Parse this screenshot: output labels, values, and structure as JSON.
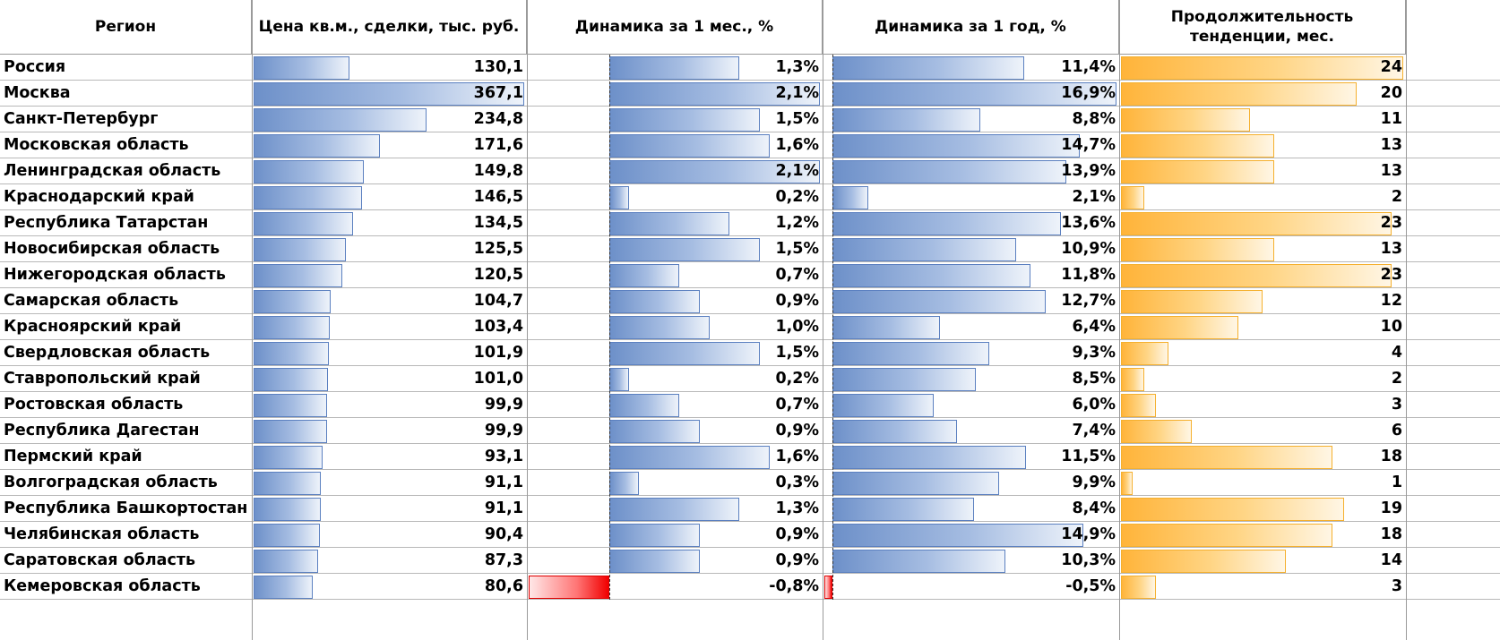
{
  "chart_data": {
    "type": "table",
    "headers": {
      "region": "Регион",
      "price": "Цена кв.м., сделки, тыс. руб.",
      "month": "Динамика за 1 мес., %",
      "year": "Динамика за 1 год, %",
      "duration": "Продолжительность тенденции, мес."
    },
    "colors": {
      "bar_blue": "#5b80c0",
      "bar_red": "#e00000",
      "bar_orange": "#f5b02e"
    },
    "rows": [
      {
        "region": "Россия",
        "price": 130.1,
        "price_label": "130,1",
        "month": 1.3,
        "month_label": "1,3%",
        "year": 11.4,
        "year_label": "11,4%",
        "duration": 24,
        "duration_label": "24"
      },
      {
        "region": "Москва",
        "price": 367.1,
        "price_label": "367,1",
        "month": 2.1,
        "month_label": "2,1%",
        "year": 16.9,
        "year_label": "16,9%",
        "duration": 20,
        "duration_label": "20"
      },
      {
        "region": "Санкт-Петербург",
        "price": 234.8,
        "price_label": "234,8",
        "month": 1.5,
        "month_label": "1,5%",
        "year": 8.8,
        "year_label": "8,8%",
        "duration": 11,
        "duration_label": "11"
      },
      {
        "region": "Московская область",
        "price": 171.6,
        "price_label": "171,6",
        "month": 1.6,
        "month_label": "1,6%",
        "year": 14.7,
        "year_label": "14,7%",
        "duration": 13,
        "duration_label": "13"
      },
      {
        "region": "Ленинградская область",
        "price": 149.8,
        "price_label": "149,8",
        "month": 2.1,
        "month_label": "2,1%",
        "year": 13.9,
        "year_label": "13,9%",
        "duration": 13,
        "duration_label": "13"
      },
      {
        "region": "Краснодарский край",
        "price": 146.5,
        "price_label": "146,5",
        "month": 0.2,
        "month_label": "0,2%",
        "year": 2.1,
        "year_label": "2,1%",
        "duration": 2,
        "duration_label": "2"
      },
      {
        "region": "Республика Татарстан",
        "price": 134.5,
        "price_label": "134,5",
        "month": 1.2,
        "month_label": "1,2%",
        "year": 13.6,
        "year_label": "13,6%",
        "duration": 23,
        "duration_label": "23"
      },
      {
        "region": "Новосибирская область",
        "price": 125.5,
        "price_label": "125,5",
        "month": 1.5,
        "month_label": "1,5%",
        "year": 10.9,
        "year_label": "10,9%",
        "duration": 13,
        "duration_label": "13"
      },
      {
        "region": "Нижегородская область",
        "price": 120.5,
        "price_label": "120,5",
        "month": 0.7,
        "month_label": "0,7%",
        "year": 11.8,
        "year_label": "11,8%",
        "duration": 23,
        "duration_label": "23"
      },
      {
        "region": "Самарская область",
        "price": 104.7,
        "price_label": "104,7",
        "month": 0.9,
        "month_label": "0,9%",
        "year": 12.7,
        "year_label": "12,7%",
        "duration": 12,
        "duration_label": "12"
      },
      {
        "region": "Красноярский край",
        "price": 103.4,
        "price_label": "103,4",
        "month": 1.0,
        "month_label": "1,0%",
        "year": 6.4,
        "year_label": "6,4%",
        "duration": 10,
        "duration_label": "10"
      },
      {
        "region": "Свердловская область",
        "price": 101.9,
        "price_label": "101,9",
        "month": 1.5,
        "month_label": "1,5%",
        "year": 9.3,
        "year_label": "9,3%",
        "duration": 4,
        "duration_label": "4"
      },
      {
        "region": "Ставропольский край",
        "price": 101.0,
        "price_label": "101,0",
        "month": 0.2,
        "month_label": "0,2%",
        "year": 8.5,
        "year_label": "8,5%",
        "duration": 2,
        "duration_label": "2"
      },
      {
        "region": "Ростовская область",
        "price": 99.9,
        "price_label": "99,9",
        "month": 0.7,
        "month_label": "0,7%",
        "year": 6.0,
        "year_label": "6,0%",
        "duration": 3,
        "duration_label": "3"
      },
      {
        "region": "Республика Дагестан",
        "price": 99.9,
        "price_label": "99,9",
        "month": 0.9,
        "month_label": "0,9%",
        "year": 7.4,
        "year_label": "7,4%",
        "duration": 6,
        "duration_label": "6"
      },
      {
        "region": "Пермский край",
        "price": 93.1,
        "price_label": "93,1",
        "month": 1.6,
        "month_label": "1,6%",
        "year": 11.5,
        "year_label": "11,5%",
        "duration": 18,
        "duration_label": "18"
      },
      {
        "region": "Волгоградская область",
        "price": 91.1,
        "price_label": "91,1",
        "month": 0.3,
        "month_label": "0,3%",
        "year": 9.9,
        "year_label": "9,9%",
        "duration": 1,
        "duration_label": "1"
      },
      {
        "region": "Республика Башкортостан",
        "price": 91.1,
        "price_label": "91,1",
        "month": 1.3,
        "month_label": "1,3%",
        "year": 8.4,
        "year_label": "8,4%",
        "duration": 19,
        "duration_label": "19"
      },
      {
        "region": "Челябинская область",
        "price": 90.4,
        "price_label": "90,4",
        "month": 0.9,
        "month_label": "0,9%",
        "year": 14.9,
        "year_label": "14,9%",
        "duration": 18,
        "duration_label": "18"
      },
      {
        "region": "Саратовская область",
        "price": 87.3,
        "price_label": "87,3",
        "month": 0.9,
        "month_label": "0,9%",
        "year": 10.3,
        "year_label": "10,3%",
        "duration": 14,
        "duration_label": "14"
      },
      {
        "region": "Кемеровская область",
        "price": 80.6,
        "price_label": "80,6",
        "month": -0.8,
        "month_label": "-0,8%",
        "year": -0.5,
        "year_label": "-0,5%",
        "duration": 3,
        "duration_label": "3"
      }
    ]
  }
}
